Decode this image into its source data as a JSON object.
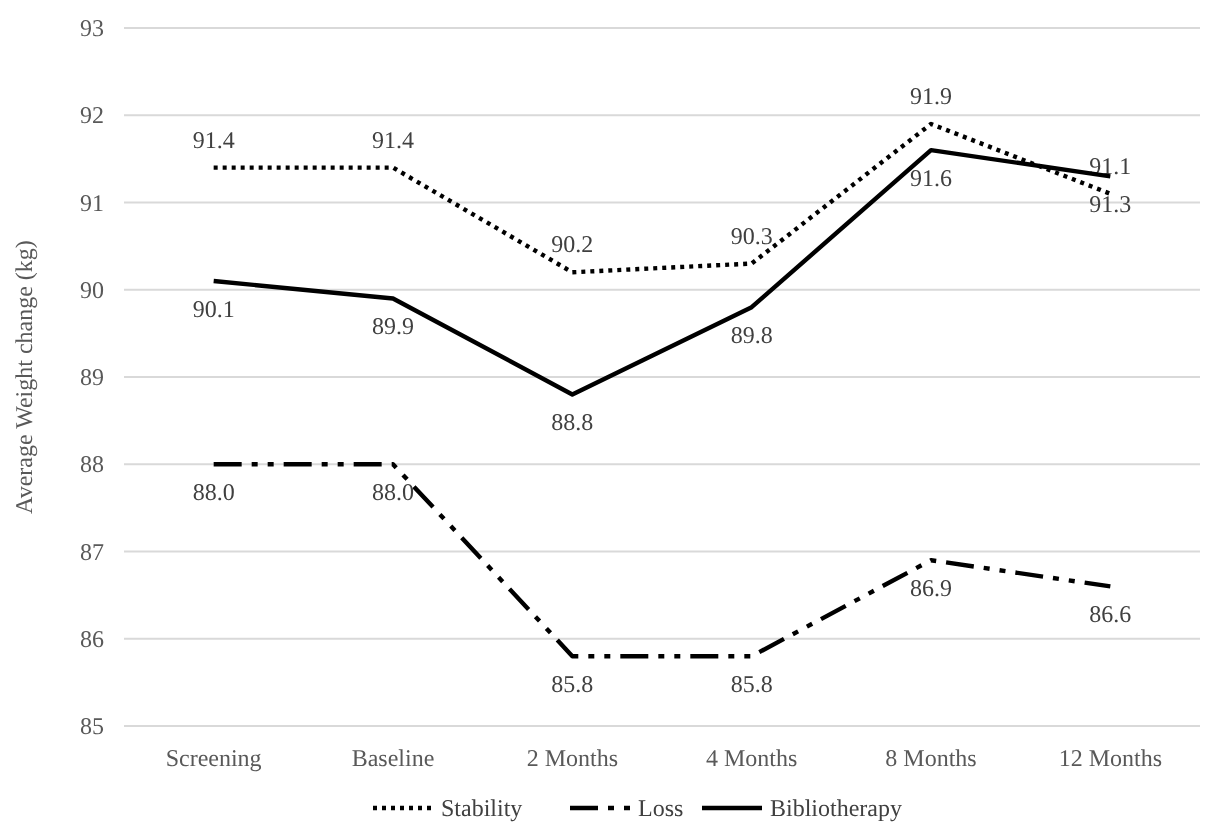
{
  "chart_data": {
    "type": "line",
    "ylabel": "Average Weight change (kg)",
    "categories": [
      "Screening",
      "Baseline",
      "2 Months",
      "4 Months",
      "8 Months",
      "12 Months"
    ],
    "series": [
      {
        "name": "Stability",
        "color": "#000000",
        "line_style": "dotted",
        "values": [
          91.4,
          91.4,
          90.2,
          90.3,
          91.9,
          91.1
        ],
        "value_labels": [
          "91.4",
          "91.4",
          "90.2",
          "90.3",
          "91.9",
          "91.1"
        ]
      },
      {
        "name": "Loss",
        "color": "#000000",
        "line_style": "dashed",
        "values": [
          88.0,
          88.0,
          85.8,
          85.8,
          86.9,
          86.6
        ],
        "value_labels": [
          "88.0",
          "88.0",
          "85.8",
          "85.8",
          "86.9",
          "86.6"
        ]
      },
      {
        "name": "Bibliotherapy",
        "color": "#000000",
        "line_style": "solid",
        "values": [
          90.1,
          89.9,
          88.8,
          89.8,
          91.6,
          91.3
        ],
        "value_labels": [
          "90.1",
          "89.9",
          "88.8",
          "89.8",
          "91.6",
          "91.3"
        ]
      }
    ],
    "ylim": [
      85,
      93
    ],
    "yticks": [
      85,
      86,
      87,
      88,
      89,
      90,
      91,
      92,
      93
    ],
    "grid": "y",
    "legend": "bottom",
    "marker": "none"
  }
}
